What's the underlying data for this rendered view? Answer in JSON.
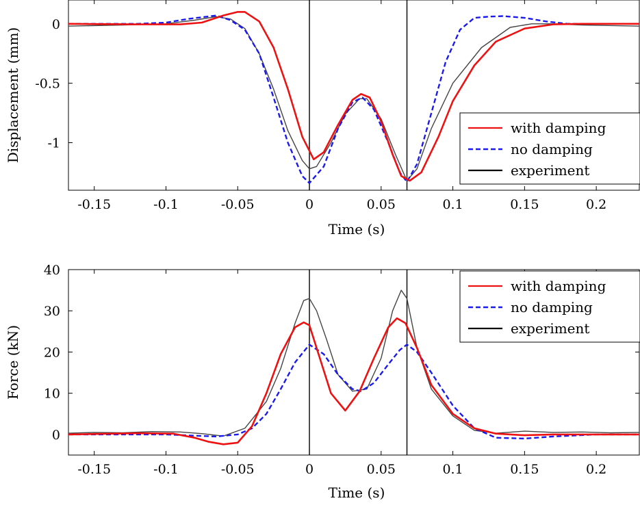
{
  "chart_data": [
    {
      "type": "line",
      "xlabel": "Time (s)",
      "ylabel": "Displacement (mm)",
      "xlim": [
        -0.168,
        0.23
      ],
      "ylim": [
        -1.4,
        0.2
      ],
      "xticks": [
        -0.15,
        -0.1,
        -0.05,
        0,
        0.05,
        0.1,
        0.15,
        0.2
      ],
      "xtick_labels": [
        "-0.15",
        "-0.1",
        "-0.05",
        "0",
        "0.05",
        "0.1",
        "0.15",
        "0.2"
      ],
      "yticks": [
        0,
        -0.5,
        -1
      ],
      "ytick_labels": [
        "0",
        "-0.5",
        "-1"
      ],
      "vlines": [
        0,
        0.068
      ],
      "legend": "top-right (inside, lower half)",
      "grid": false,
      "series": [
        {
          "name": "with damping",
          "color": "#ee1111",
          "style": "solid",
          "x": [
            -0.168,
            -0.12,
            -0.09,
            -0.075,
            -0.06,
            -0.05,
            -0.045,
            -0.035,
            -0.025,
            -0.015,
            -0.005,
            0.003,
            0.01,
            0.02,
            0.03,
            0.036,
            0.042,
            0.05,
            0.058,
            0.064,
            0.07,
            0.078,
            0.09,
            0.1,
            0.115,
            0.13,
            0.15,
            0.17,
            0.19,
            0.23
          ],
          "y": [
            0,
            -0.005,
            -0.005,
            0.01,
            0.07,
            0.1,
            0.1,
            0.02,
            -0.2,
            -0.55,
            -0.95,
            -1.14,
            -1.08,
            -0.85,
            -0.64,
            -0.59,
            -0.62,
            -0.82,
            -1.1,
            -1.28,
            -1.32,
            -1.25,
            -0.95,
            -0.65,
            -0.35,
            -0.15,
            -0.04,
            -0.005,
            0,
            0
          ]
        },
        {
          "name": "no damping",
          "color": "#1a1aee",
          "style": "dashed",
          "x": [
            -0.168,
            -0.12,
            -0.1,
            -0.085,
            -0.065,
            -0.055,
            -0.045,
            -0.035,
            -0.025,
            -0.015,
            -0.005,
            0.0,
            0.01,
            0.02,
            0.03,
            0.037,
            0.045,
            0.055,
            0.063,
            0.068,
            0.075,
            0.085,
            0.095,
            0.105,
            0.115,
            0.125,
            0.135,
            0.15,
            0.165,
            0.18,
            0.23
          ],
          "y": [
            0,
            0,
            0.01,
            0.04,
            0.07,
            0.03,
            -0.05,
            -0.25,
            -0.62,
            -1.0,
            -1.28,
            -1.34,
            -1.2,
            -0.88,
            -0.66,
            -0.62,
            -0.72,
            -1.0,
            -1.25,
            -1.33,
            -1.18,
            -0.75,
            -0.32,
            -0.05,
            0.05,
            0.06,
            0.065,
            0.05,
            0.02,
            0,
            0
          ]
        },
        {
          "name": "experiment",
          "color": "#444444",
          "style": "solid",
          "x": [
            -0.168,
            -0.13,
            -0.1,
            -0.08,
            -0.065,
            -0.055,
            -0.045,
            -0.035,
            -0.025,
            -0.015,
            -0.005,
            0.0,
            0.005,
            0.015,
            0.025,
            0.035,
            0.04,
            0.05,
            0.06,
            0.068,
            0.075,
            0.085,
            0.1,
            0.12,
            0.14,
            0.155,
            0.17,
            0.19,
            0.23
          ],
          "y": [
            -0.02,
            -0.01,
            0.0,
            0.03,
            0.06,
            0.04,
            -0.04,
            -0.25,
            -0.55,
            -0.9,
            -1.15,
            -1.22,
            -1.2,
            -1.0,
            -0.76,
            -0.63,
            -0.63,
            -0.8,
            -1.1,
            -1.32,
            -1.22,
            -0.88,
            -0.5,
            -0.2,
            -0.03,
            0.0,
            0.0,
            -0.01,
            -0.02
          ]
        }
      ]
    },
    {
      "type": "line",
      "xlabel": "Time (s)",
      "ylabel": "Force (kN)",
      "xlim": [
        -0.168,
        0.23
      ],
      "ylim": [
        -5,
        40
      ],
      "xticks": [
        -0.15,
        -0.1,
        -0.05,
        0,
        0.05,
        0.1,
        0.15,
        0.2
      ],
      "xtick_labels": [
        "-0.15",
        "-0.1",
        "-0.05",
        "0",
        "0.05",
        "0.1",
        "0.15",
        "0.2"
      ],
      "yticks": [
        0,
        10,
        20,
        30,
        40
      ],
      "ytick_labels": [
        "0",
        "10",
        "20",
        "30",
        "40"
      ],
      "vlines": [
        0,
        0.068
      ],
      "legend": "top-right",
      "grid": false,
      "series": [
        {
          "name": "with damping",
          "color": "#ee1111",
          "style": "solid",
          "x": [
            -0.168,
            -0.12,
            -0.095,
            -0.08,
            -0.07,
            -0.06,
            -0.05,
            -0.04,
            -0.03,
            -0.02,
            -0.01,
            -0.004,
            0.0,
            0.005,
            0.015,
            0.025,
            0.035,
            0.045,
            0.055,
            0.061,
            0.067,
            0.075,
            0.085,
            0.1,
            0.115,
            0.13,
            0.15,
            0.17,
            0.2,
            0.23
          ],
          "y": [
            0,
            0.3,
            0.2,
            -0.8,
            -1.8,
            -2.4,
            -2.0,
            2.0,
            10.0,
            19.5,
            26.0,
            27.2,
            26.5,
            21.0,
            10.0,
            5.8,
            10.5,
            18.5,
            26.0,
            28.2,
            27.0,
            21.0,
            12.0,
            5.0,
            1.5,
            0.2,
            -0.2,
            0,
            0,
            0
          ]
        },
        {
          "name": "no damping",
          "color": "#1a1aee",
          "style": "dashed",
          "x": [
            -0.168,
            -0.12,
            -0.1,
            -0.08,
            -0.065,
            -0.05,
            -0.04,
            -0.03,
            -0.02,
            -0.01,
            0.0,
            0.01,
            0.02,
            0.03,
            0.036,
            0.045,
            0.055,
            0.063,
            0.068,
            0.075,
            0.085,
            0.1,
            0.115,
            0.13,
            0.15,
            0.17,
            0.2,
            0.23
          ],
          "y": [
            0,
            0,
            0,
            -0.3,
            -0.5,
            0.0,
            1.5,
            5.0,
            11.0,
            17.5,
            21.8,
            19.5,
            14.5,
            11.0,
            10.5,
            12.5,
            17.0,
            20.5,
            21.8,
            20.0,
            15.0,
            7.0,
            1.5,
            -0.8,
            -1.0,
            -0.5,
            0,
            0
          ]
        },
        {
          "name": "experiment",
          "color": "#444444",
          "style": "solid",
          "x": [
            -0.168,
            -0.15,
            -0.13,
            -0.11,
            -0.09,
            -0.075,
            -0.06,
            -0.045,
            -0.03,
            -0.02,
            -0.01,
            -0.004,
            0.0,
            0.005,
            0.012,
            0.02,
            0.03,
            0.04,
            0.05,
            0.058,
            0.064,
            0.068,
            0.075,
            0.085,
            0.1,
            0.115,
            0.13,
            0.15,
            0.17,
            0.19,
            0.21,
            0.23
          ],
          "y": [
            0.3,
            0.5,
            0.4,
            0.7,
            0.6,
            0.2,
            -0.4,
            1.5,
            8.0,
            16.0,
            27.0,
            32.5,
            33.0,
            30.0,
            23.0,
            14.5,
            10.5,
            11.0,
            18.5,
            30.0,
            35.0,
            33.0,
            21.0,
            11.0,
            4.5,
            1.0,
            0.3,
            0.8,
            0.5,
            0.6,
            0.4,
            0.5
          ]
        }
      ]
    }
  ]
}
